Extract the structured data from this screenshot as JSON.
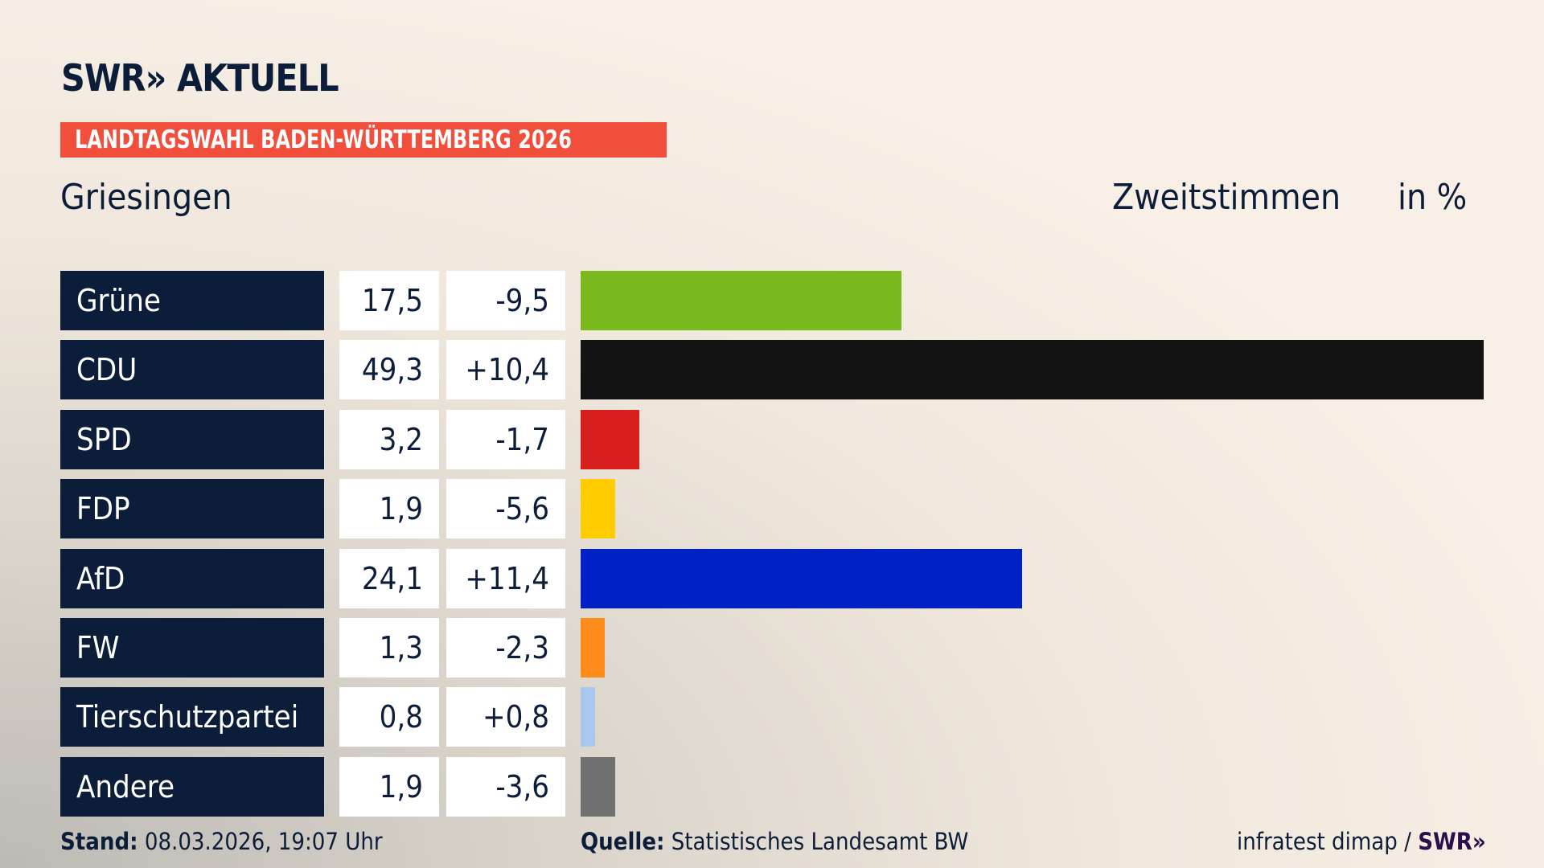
{
  "header": {
    "logo": "SWR» AKTUELL",
    "banner": "LANDTAGSWAHL BADEN-WÜRTTEMBERG 2026",
    "place": "Griesingen",
    "vote_type": "Zweitstimmen",
    "unit": "in %"
  },
  "chart_data": {
    "type": "bar",
    "orientation": "horizontal",
    "title": "Griesingen",
    "categories": [
      "Grüne",
      "CDU",
      "SPD",
      "FDP",
      "AfD",
      "FW",
      "Tierschutzpartei",
      "Andere"
    ],
    "values": [
      17.5,
      49.3,
      3.2,
      1.9,
      24.1,
      1.3,
      0.8,
      1.9
    ],
    "value_labels": [
      "17,5",
      "49,3",
      "3,2",
      "1,9",
      "24,1",
      "1,3",
      "0,8",
      "1,9"
    ],
    "diff_labels": [
      "-9,5",
      "+10,4",
      "-1,7",
      "-5,6",
      "+11,4",
      "-2,3",
      "+0,8",
      "-3,6"
    ],
    "diffs": [
      -9.5,
      10.4,
      -1.7,
      -5.6,
      11.4,
      -2.3,
      0.8,
      -3.6
    ],
    "colors": [
      "#7ab91e",
      "#131313",
      "#d71f1d",
      "#ffcc00",
      "#0021c6",
      "#ff8c1a",
      "#a9c8f0",
      "#707070"
    ],
    "xlim": [
      0,
      49.3
    ],
    "grid": false
  },
  "footer": {
    "stand_label": "Stand:",
    "stand_value": "08.03.2026, 19:07 Uhr",
    "source_label": "Quelle:",
    "source_value": "Statistisches Landesamt BW",
    "credit": "infratest dimap / ",
    "credit_logo": "SWR»"
  }
}
